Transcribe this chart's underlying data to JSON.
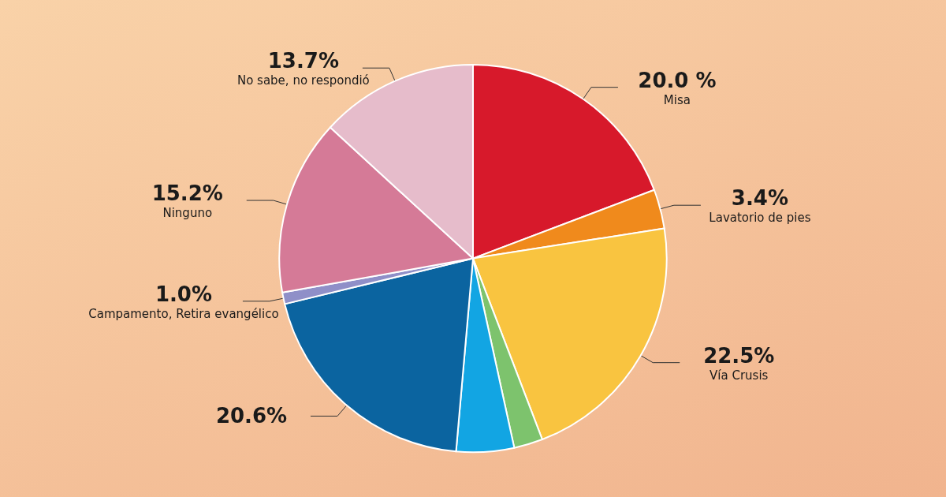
{
  "chart_data": {
    "type": "pie",
    "categories": [
      "Misa",
      "Lavatorio de pies",
      "Vía Crusis",
      null,
      null,
      null,
      "Campamento, Retira evangélico",
      "Ninguno",
      "No sabe, no respondió"
    ],
    "values": [
      20.0,
      3.4,
      22.5,
      2.5,
      5.0,
      20.6,
      1.0,
      15.2,
      13.7
    ],
    "value_labels": [
      "20.0 %",
      "3.4%",
      "22.5%",
      null,
      null,
      "20.6%",
      "1.0%",
      "15.2%",
      "13.7%"
    ],
    "colors": [
      "#d7192b",
      "#f08a1c",
      "#f9c440",
      "#7dc36d",
      "#12a5e3",
      "#0b64a0",
      "#8f8fc8",
      "#d57a97",
      "#e6bccb"
    ],
    "legend": false
  }
}
